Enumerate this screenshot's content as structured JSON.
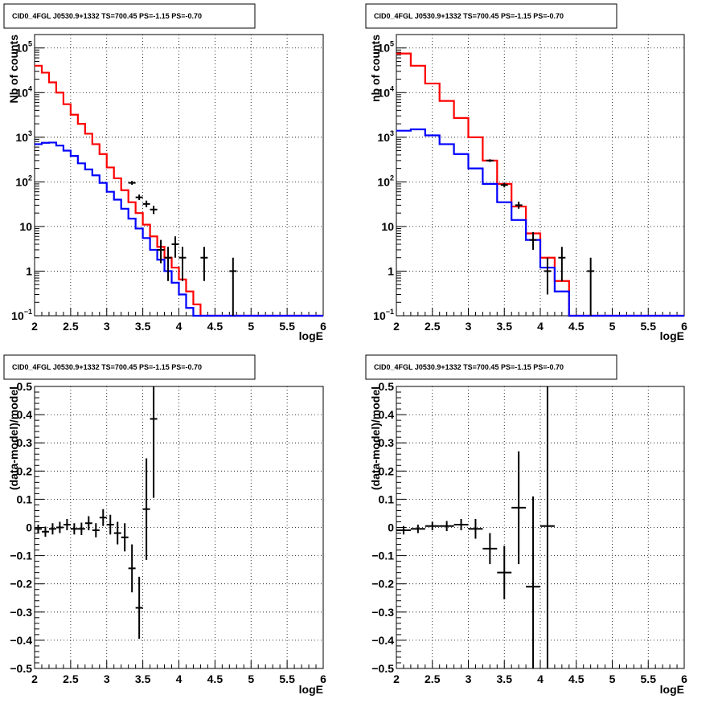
{
  "colors": {
    "data": "#000000",
    "model_total": "#ff0000",
    "model_component": "#0000ff",
    "background": "#ffffff"
  },
  "panels_title": "CID0_4FGL J0530.9+1332 TS=700.45 PS=-1.15 PS=-0.70",
  "chart_data": [
    {
      "type": "histogram",
      "panel": "top-left",
      "title": "CID0_4FGL J0530.9+1332 TS=700.45 PS=-1.15 PS=-0.70",
      "xlabel": "logE",
      "ylabel": "Nb of counts",
      "xlim": [
        2,
        6
      ],
      "ylim": [
        0.1,
        200000
      ],
      "yscale": "log",
      "grid": true,
      "x_ticks": [
        "2",
        "2.5",
        "3",
        "3.5",
        "4",
        "4.5",
        "5",
        "5.5",
        "6"
      ],
      "y_ticks": [
        {
          "value": 0.1,
          "base": "10",
          "exp": "−1"
        },
        {
          "value": 1,
          "base": "1",
          "exp": ""
        },
        {
          "value": 10,
          "base": "10",
          "exp": ""
        },
        {
          "value": 100,
          "base": "10",
          "exp": "2"
        },
        {
          "value": 1000,
          "base": "10",
          "exp": "3"
        },
        {
          "value": 10000,
          "base": "10",
          "exp": "4"
        },
        {
          "value": 100000,
          "base": "10",
          "exp": "5"
        }
      ],
      "bin_edges": [
        2.0,
        2.1,
        2.2,
        2.3,
        2.4,
        2.5,
        2.6,
        2.7,
        2.8,
        2.9,
        3.0,
        3.1,
        3.2,
        3.3,
        3.4,
        3.5,
        3.6,
        3.7,
        3.8,
        3.9,
        4.0,
        4.1,
        4.2,
        4.3,
        4.4,
        4.5,
        4.6,
        4.7,
        4.8,
        4.9,
        5.0,
        5.1,
        5.2,
        5.3,
        5.4,
        5.5,
        5.6,
        5.7,
        5.8,
        5.9,
        6.0
      ],
      "series": [
        {
          "name": "model_total",
          "color": "#ff0000",
          "kind": "step",
          "values": [
            40000,
            28000,
            17000,
            10000,
            5500,
            3200,
            2000,
            1200,
            700,
            420,
            210,
            120,
            65,
            35,
            20,
            11,
            6,
            3.5,
            2,
            1.2,
            0.65,
            0.35,
            0.18,
            0.1,
            0.1,
            0.1,
            0.1,
            0.1,
            0.1,
            0.1,
            0.1,
            0.1,
            0.1,
            0.1,
            0.1,
            0.1,
            0.1,
            0.1,
            0.1,
            0.1
          ]
        },
        {
          "name": "model_component",
          "color": "#0000ff",
          "kind": "step",
          "values": [
            700,
            750,
            760,
            650,
            500,
            380,
            260,
            190,
            140,
            95,
            60,
            40,
            25,
            15,
            9,
            5.5,
            3,
            1.8,
            1,
            0.55,
            0.3,
            0.15,
            0.1,
            0.1,
            0.1,
            0.1,
            0.1,
            0.1,
            0.1,
            0.1,
            0.1,
            0.1,
            0.1,
            0.1,
            0.1,
            0.1,
            0.1,
            0.1,
            0.1,
            0.1
          ]
        },
        {
          "name": "data",
          "color": "#000000",
          "kind": "errorbar",
          "points": [
            {
              "x": 3.35,
              "y": 95,
              "lo": 86,
              "hi": 105
            },
            {
              "x": 3.45,
              "y": 45,
              "lo": 39,
              "hi": 52
            },
            {
              "x": 3.55,
              "y": 32,
              "lo": 27,
              "hi": 38
            },
            {
              "x": 3.65,
              "y": 24,
              "lo": 19,
              "hi": 29
            },
            {
              "x": 3.75,
              "y": 3,
              "lo": 1.5,
              "hi": 5
            },
            {
              "x": 3.85,
              "y": 2,
              "lo": 0.6,
              "hi": 3.5
            },
            {
              "x": 3.95,
              "y": 4,
              "lo": 2,
              "hi": 6
            },
            {
              "x": 4.05,
              "y": 2,
              "lo": 0.6,
              "hi": 3.5
            },
            {
              "x": 4.35,
              "y": 2,
              "lo": 0.6,
              "hi": 3.5
            },
            {
              "x": 4.75,
              "y": 1,
              "lo": 0.1,
              "hi": 2
            }
          ]
        }
      ]
    },
    {
      "type": "histogram",
      "panel": "top-right",
      "title": "CID0_4FGL J0530.9+1332 TS=700.45 PS=-1.15 PS=-0.70",
      "xlabel": "logE",
      "ylabel": "nb of counts",
      "xlim": [
        2,
        6
      ],
      "ylim": [
        0.1,
        200000
      ],
      "yscale": "log",
      "grid": true,
      "x_ticks": [
        "2",
        "2.5",
        "3",
        "3.5",
        "4",
        "4.5",
        "5",
        "5.5",
        "6"
      ],
      "y_ticks": [
        {
          "value": 0.1,
          "base": "10",
          "exp": "−1"
        },
        {
          "value": 1,
          "base": "1",
          "exp": ""
        },
        {
          "value": 10,
          "base": "10",
          "exp": ""
        },
        {
          "value": 100,
          "base": "10",
          "exp": "2"
        },
        {
          "value": 1000,
          "base": "10",
          "exp": "3"
        },
        {
          "value": 10000,
          "base": "10",
          "exp": "4"
        },
        {
          "value": 100000,
          "base": "10",
          "exp": "5"
        }
      ],
      "bin_edges": [
        2.0,
        2.2,
        2.4,
        2.6,
        2.8,
        3.0,
        3.2,
        3.4,
        3.6,
        3.8,
        4.0,
        4.2,
        4.4,
        4.6,
        4.8,
        5.0,
        5.2,
        5.4,
        5.6,
        5.8,
        6.0
      ],
      "series": [
        {
          "name": "model_total",
          "color": "#ff0000",
          "kind": "step",
          "values": [
            75000,
            40000,
            16000,
            6500,
            2700,
            1000,
            300,
            90,
            28,
            7,
            2,
            0.6,
            0.1,
            0.1,
            0.1,
            0.1,
            0.1,
            0.1,
            0.1,
            0.1
          ]
        },
        {
          "name": "model_component",
          "color": "#0000ff",
          "kind": "step",
          "values": [
            1400,
            1500,
            1100,
            700,
            420,
            200,
            90,
            35,
            14,
            5,
            1.2,
            0.35,
            0.1,
            0.1,
            0.1,
            0.1,
            0.1,
            0.1,
            0.1,
            0.1
          ]
        },
        {
          "name": "data",
          "color": "#000000",
          "kind": "errorbar",
          "points": [
            {
              "x": 3.3,
              "y": 300,
              "lo": 280,
              "hi": 320
            },
            {
              "x": 3.5,
              "y": 85,
              "lo": 75,
              "hi": 95
            },
            {
              "x": 3.7,
              "y": 30,
              "lo": 25,
              "hi": 36
            },
            {
              "x": 3.9,
              "y": 5,
              "lo": 3,
              "hi": 7.5
            },
            {
              "x": 4.1,
              "y": 1,
              "lo": 0.3,
              "hi": 2
            },
            {
              "x": 4.3,
              "y": 2,
              "lo": 0.6,
              "hi": 3.5
            },
            {
              "x": 4.7,
              "y": 1,
              "lo": 0.1,
              "hi": 2
            }
          ]
        }
      ]
    },
    {
      "type": "scatter",
      "panel": "bottom-left",
      "title": "CID0_4FGL J0530.9+1332 TS=700.45 PS=-1.15 PS=-0.70",
      "xlabel": "logE",
      "ylabel": "(data-model)/model",
      "xlim": [
        2,
        6
      ],
      "ylim": [
        -0.5,
        0.5
      ],
      "yscale": "linear",
      "grid": true,
      "x_ticks": [
        "2",
        "2.5",
        "3",
        "3.5",
        "4",
        "4.5",
        "5",
        "5.5",
        "6"
      ],
      "y_ticks": [
        "−0.5",
        "−0.4",
        "−0.3",
        "−0.2",
        "−0.1",
        "0",
        "0.1",
        "0.2",
        "0.3",
        "0.4",
        "0.5"
      ],
      "series": [
        {
          "name": "residuals",
          "color": "#000000",
          "kind": "errorbar",
          "xerr": 0.05,
          "points": [
            {
              "x": 2.05,
              "y": -0.005,
              "e": 0.015
            },
            {
              "x": 2.15,
              "y": -0.015,
              "e": 0.018
            },
            {
              "x": 2.25,
              "y": -0.005,
              "e": 0.02
            },
            {
              "x": 2.35,
              "y": 0.0,
              "e": 0.02
            },
            {
              "x": 2.45,
              "y": 0.01,
              "e": 0.02
            },
            {
              "x": 2.55,
              "y": -0.005,
              "e": 0.02
            },
            {
              "x": 2.65,
              "y": -0.005,
              "e": 0.022
            },
            {
              "x": 2.75,
              "y": 0.015,
              "e": 0.025
            },
            {
              "x": 2.85,
              "y": -0.01,
              "e": 0.025
            },
            {
              "x": 2.95,
              "y": 0.035,
              "e": 0.03
            },
            {
              "x": 3.05,
              "y": 0.01,
              "e": 0.035
            },
            {
              "x": 3.15,
              "y": -0.02,
              "e": 0.04
            },
            {
              "x": 3.25,
              "y": -0.035,
              "e": 0.05
            },
            {
              "x": 3.35,
              "y": -0.145,
              "e": 0.085
            },
            {
              "x": 3.45,
              "y": -0.285,
              "e": 0.11
            },
            {
              "x": 3.55,
              "y": 0.065,
              "e": 0.18
            },
            {
              "x": 3.65,
              "y": 0.385,
              "e": 0.28
            }
          ]
        }
      ]
    },
    {
      "type": "scatter",
      "panel": "bottom-right",
      "title": "CID0_4FGL J0530.9+1332 TS=700.45 PS=-1.15 PS=-0.70",
      "xlabel": "logE",
      "ylabel": "(data-model)/model",
      "xlim": [
        2,
        6
      ],
      "ylim": [
        -0.5,
        0.5
      ],
      "yscale": "linear",
      "grid": true,
      "x_ticks": [
        "2",
        "2.5",
        "3",
        "3.5",
        "4",
        "4.5",
        "5",
        "5.5",
        "6"
      ],
      "y_ticks": [
        "−0.5",
        "−0.4",
        "−0.3",
        "−0.2",
        "−0.1",
        "0",
        "0.1",
        "0.2",
        "0.3",
        "0.4",
        "0.5"
      ],
      "series": [
        {
          "name": "residuals",
          "color": "#000000",
          "kind": "errorbar",
          "xerr": 0.1,
          "points": [
            {
              "x": 2.1,
              "y": -0.01,
              "e": 0.015
            },
            {
              "x": 2.3,
              "y": -0.005,
              "e": 0.015
            },
            {
              "x": 2.5,
              "y": 0.005,
              "e": 0.015
            },
            {
              "x": 2.7,
              "y": 0.005,
              "e": 0.018
            },
            {
              "x": 2.9,
              "y": 0.01,
              "e": 0.02
            },
            {
              "x": 3.1,
              "y": -0.005,
              "e": 0.035
            },
            {
              "x": 3.3,
              "y": -0.075,
              "e": 0.055
            },
            {
              "x": 3.5,
              "y": -0.16,
              "e": 0.095
            },
            {
              "x": 3.7,
              "y": 0.07,
              "e": 0.2
            },
            {
              "x": 3.9,
              "y": -0.21,
              "e": 0.32
            },
            {
              "x": 4.1,
              "y": 0.005,
              "e": 0.55
            }
          ]
        }
      ]
    }
  ]
}
